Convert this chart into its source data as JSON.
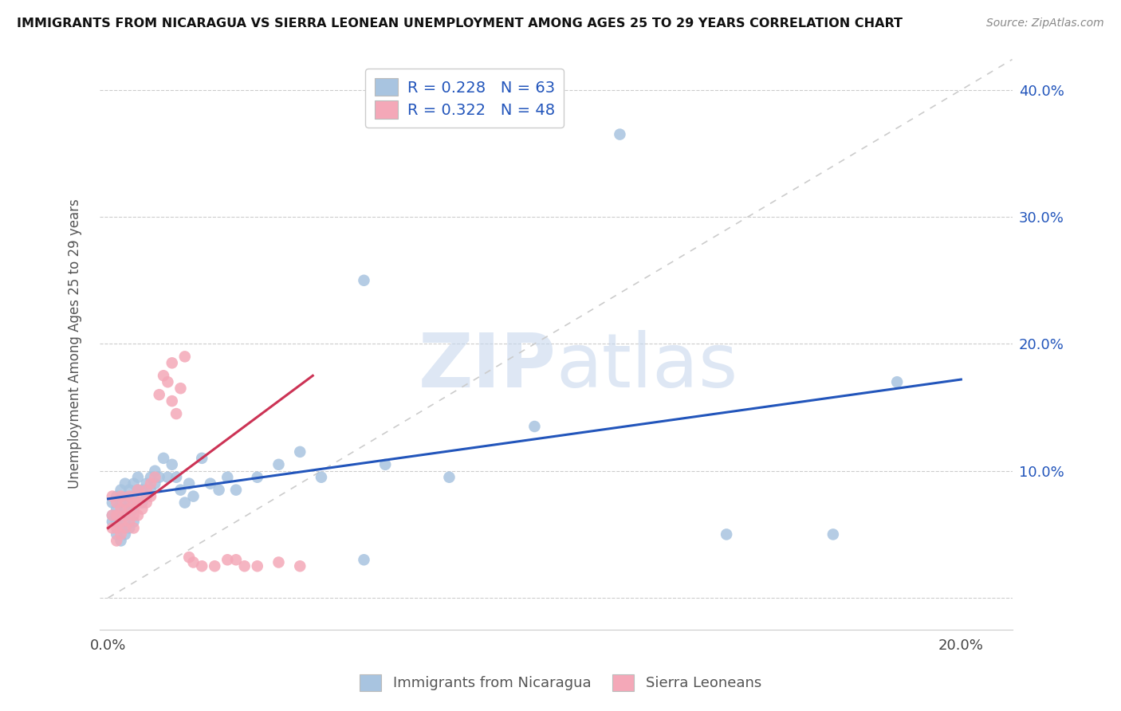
{
  "title": "IMMIGRANTS FROM NICARAGUA VS SIERRA LEONEAN UNEMPLOYMENT AMONG AGES 25 TO 29 YEARS CORRELATION CHART",
  "source": "Source: ZipAtlas.com",
  "xlim": [
    -0.002,
    0.212
  ],
  "ylim": [
    -0.025,
    0.425
  ],
  "blue_R": 0.228,
  "blue_N": 63,
  "pink_R": 0.322,
  "pink_N": 48,
  "blue_color": "#a8c4e0",
  "pink_color": "#f4a8b8",
  "blue_line_color": "#2255bb",
  "pink_line_color": "#cc3355",
  "diagonal_color": "#cccccc",
  "legend_label_blue": "Immigrants from Nicaragua",
  "legend_label_pink": "Sierra Leoneans",
  "watermark_zip": "ZIP",
  "watermark_atlas": "atlas",
  "blue_line_x0": 0.0,
  "blue_line_x1": 0.2,
  "blue_line_y0": 0.078,
  "blue_line_y1": 0.172,
  "pink_line_x0": 0.0,
  "pink_line_x1": 0.048,
  "pink_line_y0": 0.055,
  "pink_line_y1": 0.175,
  "blue_x": [
    0.001,
    0.001,
    0.001,
    0.002,
    0.002,
    0.002,
    0.002,
    0.003,
    0.003,
    0.003,
    0.003,
    0.003,
    0.004,
    0.004,
    0.004,
    0.004,
    0.004,
    0.005,
    0.005,
    0.005,
    0.005,
    0.006,
    0.006,
    0.006,
    0.006,
    0.007,
    0.007,
    0.007,
    0.008,
    0.008,
    0.009,
    0.009,
    0.01,
    0.01,
    0.011,
    0.011,
    0.012,
    0.013,
    0.014,
    0.015,
    0.016,
    0.017,
    0.018,
    0.019,
    0.02,
    0.022,
    0.024,
    0.026,
    0.028,
    0.03,
    0.035,
    0.04,
    0.045,
    0.05,
    0.06,
    0.065,
    0.08,
    0.1,
    0.12,
    0.145,
    0.17,
    0.185,
    0.06
  ],
  "blue_y": [
    0.075,
    0.065,
    0.06,
    0.08,
    0.07,
    0.06,
    0.05,
    0.085,
    0.075,
    0.065,
    0.055,
    0.045,
    0.09,
    0.08,
    0.07,
    0.06,
    0.05,
    0.085,
    0.075,
    0.065,
    0.055,
    0.09,
    0.08,
    0.07,
    0.06,
    0.095,
    0.085,
    0.075,
    0.085,
    0.075,
    0.09,
    0.08,
    0.095,
    0.085,
    0.1,
    0.09,
    0.095,
    0.11,
    0.095,
    0.105,
    0.095,
    0.085,
    0.075,
    0.09,
    0.08,
    0.11,
    0.09,
    0.085,
    0.095,
    0.085,
    0.095,
    0.105,
    0.115,
    0.095,
    0.03,
    0.105,
    0.095,
    0.135,
    0.365,
    0.05,
    0.05,
    0.17,
    0.25
  ],
  "pink_x": [
    0.001,
    0.001,
    0.001,
    0.002,
    0.002,
    0.002,
    0.002,
    0.003,
    0.003,
    0.003,
    0.003,
    0.004,
    0.004,
    0.004,
    0.005,
    0.005,
    0.005,
    0.006,
    0.006,
    0.006,
    0.007,
    0.007,
    0.007,
    0.008,
    0.008,
    0.009,
    0.009,
    0.01,
    0.01,
    0.011,
    0.012,
    0.013,
    0.014,
    0.015,
    0.015,
    0.016,
    0.017,
    0.018,
    0.019,
    0.02,
    0.022,
    0.025,
    0.028,
    0.03,
    0.032,
    0.035,
    0.04,
    0.045
  ],
  "pink_y": [
    0.08,
    0.065,
    0.055,
    0.075,
    0.065,
    0.055,
    0.045,
    0.08,
    0.07,
    0.06,
    0.05,
    0.075,
    0.065,
    0.055,
    0.08,
    0.07,
    0.06,
    0.075,
    0.065,
    0.055,
    0.085,
    0.075,
    0.065,
    0.08,
    0.07,
    0.085,
    0.075,
    0.09,
    0.08,
    0.095,
    0.16,
    0.175,
    0.17,
    0.155,
    0.185,
    0.145,
    0.165,
    0.19,
    0.032,
    0.028,
    0.025,
    0.025,
    0.03,
    0.03,
    0.025,
    0.025,
    0.028,
    0.025
  ]
}
